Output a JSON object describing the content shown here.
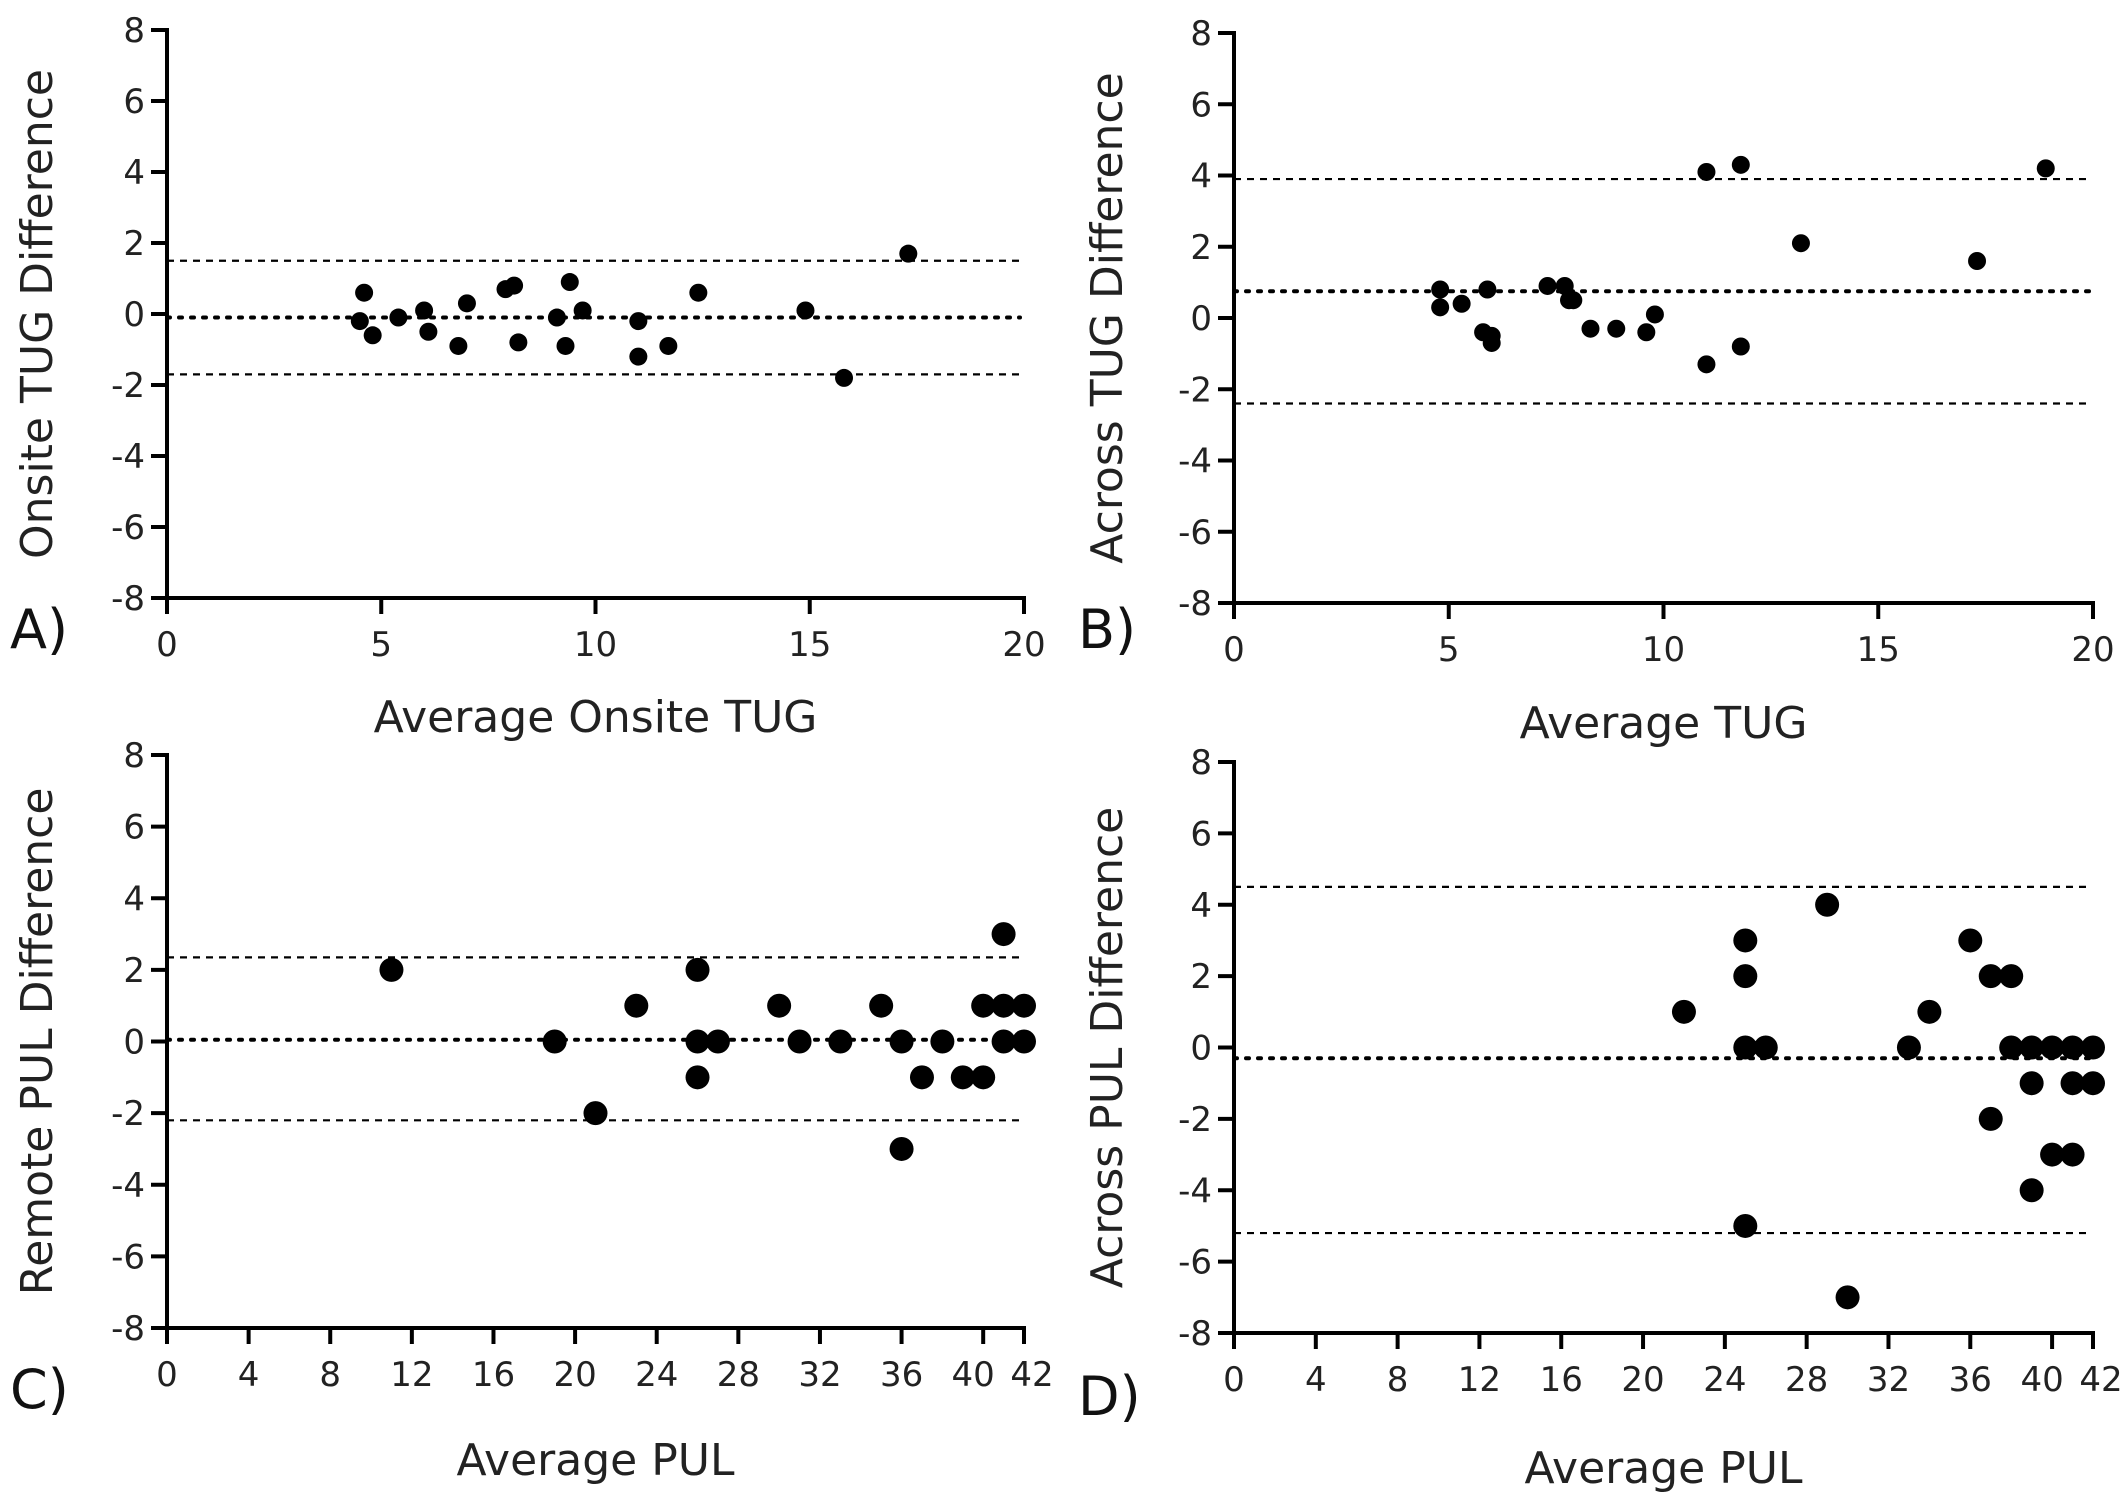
{
  "chart_data": [
    {
      "panel": "A)",
      "type": "scatter",
      "xlabel": "Average Onsite TUG",
      "ylabel": "Onsite TUG Difference",
      "xlim": [
        0,
        20
      ],
      "ylim": [
        -8,
        8
      ],
      "xticks": [
        0,
        5,
        10,
        15,
        20
      ],
      "yticks": [
        -8,
        -6,
        -4,
        -2,
        0,
        2,
        4,
        6,
        8
      ],
      "reference_lines": {
        "upper_loa": 1.5,
        "mean": -0.1,
        "lower_loa": -1.7
      },
      "marker": "small",
      "points": [
        [
          4.6,
          0.6
        ],
        [
          4.5,
          -0.2
        ],
        [
          4.8,
          -0.6
        ],
        [
          5.4,
          -0.1
        ],
        [
          6.0,
          0.1
        ],
        [
          6.1,
          -0.5
        ],
        [
          6.8,
          -0.9
        ],
        [
          7.0,
          0.3
        ],
        [
          7.9,
          0.7
        ],
        [
          8.1,
          0.8
        ],
        [
          8.2,
          -0.8
        ],
        [
          9.1,
          -0.1
        ],
        [
          9.3,
          -0.9
        ],
        [
          9.4,
          0.9
        ],
        [
          9.7,
          0.1
        ],
        [
          11.0,
          -0.2
        ],
        [
          11.0,
          -1.2
        ],
        [
          11.7,
          -0.9
        ],
        [
          12.4,
          0.6
        ],
        [
          14.9,
          0.1
        ],
        [
          15.8,
          -1.8
        ],
        [
          17.3,
          1.7
        ]
      ]
    },
    {
      "panel": "B)",
      "type": "scatter",
      "xlabel": "Average TUG",
      "ylabel": "Across TUG Difference",
      "xlim": [
        0,
        20
      ],
      "ylim": [
        -8,
        8
      ],
      "xticks": [
        0,
        5,
        10,
        15,
        20
      ],
      "yticks": [
        -8,
        -6,
        -4,
        -2,
        0,
        2,
        4,
        6,
        8
      ],
      "reference_lines": {
        "upper_loa": 3.9,
        "mean": 0.75,
        "lower_loa": -2.4
      },
      "marker": "small",
      "points": [
        [
          4.8,
          0.8
        ],
        [
          4.8,
          0.3
        ],
        [
          5.3,
          0.4
        ],
        [
          5.8,
          -0.4
        ],
        [
          5.9,
          0.8
        ],
        [
          6.0,
          -0.5
        ],
        [
          6.0,
          -0.7
        ],
        [
          7.3,
          0.9
        ],
        [
          7.7,
          0.9
        ],
        [
          7.8,
          0.5
        ],
        [
          7.9,
          0.5
        ],
        [
          8.3,
          -0.3
        ],
        [
          8.9,
          -0.3
        ],
        [
          9.6,
          -0.4
        ],
        [
          9.8,
          0.1
        ],
        [
          11.0,
          4.1
        ],
        [
          11.0,
          -1.3
        ],
        [
          11.8,
          4.3
        ],
        [
          11.8,
          -0.8
        ],
        [
          13.2,
          2.1
        ],
        [
          17.3,
          1.6
        ],
        [
          18.9,
          4.2
        ]
      ]
    },
    {
      "panel": "C)",
      "type": "scatter",
      "xlabel": "Average PUL",
      "ylabel": "Remote PUL Difference",
      "xlim": [
        0,
        42
      ],
      "ylim": [
        -8,
        8
      ],
      "xticks": [
        0,
        4,
        8,
        12,
        16,
        20,
        24,
        28,
        32,
        36,
        40,
        42
      ],
      "xtick_labels": [
        "0",
        "4",
        "8",
        "12",
        "16",
        "20",
        "24",
        "28",
        "32",
        "36",
        "40",
        "42"
      ],
      "yticks": [
        -8,
        -6,
        -4,
        -2,
        0,
        2,
        4,
        6,
        8
      ],
      "reference_lines": {
        "upper_loa": 2.35,
        "mean": 0.05,
        "lower_loa": -2.2
      },
      "marker": "large",
      "points": [
        [
          11,
          2
        ],
        [
          19,
          0
        ],
        [
          21,
          -2
        ],
        [
          23,
          1
        ],
        [
          26,
          2
        ],
        [
          26,
          0
        ],
        [
          26,
          -1
        ],
        [
          27,
          0
        ],
        [
          30,
          1
        ],
        [
          31,
          0
        ],
        [
          33,
          0
        ],
        [
          35,
          1
        ],
        [
          36,
          0
        ],
        [
          36,
          -3
        ],
        [
          37,
          -1
        ],
        [
          38,
          0
        ],
        [
          39,
          -1
        ],
        [
          40,
          -1
        ],
        [
          40,
          1
        ],
        [
          41,
          3
        ],
        [
          41,
          1
        ],
        [
          41,
          0
        ],
        [
          42,
          1
        ],
        [
          42,
          0
        ]
      ]
    },
    {
      "panel": "D)",
      "type": "scatter",
      "xlabel": "Average PUL",
      "ylabel": "Across PUL Difference",
      "xlim": [
        0,
        42
      ],
      "ylim": [
        -8,
        8
      ],
      "xticks": [
        0,
        4,
        8,
        12,
        16,
        20,
        24,
        28,
        32,
        36,
        40,
        42
      ],
      "xtick_labels": [
        "0",
        "4",
        "8",
        "12",
        "16",
        "20",
        "24",
        "28",
        "32",
        "36",
        "40",
        "42"
      ],
      "yticks": [
        -8,
        -6,
        -4,
        -2,
        0,
        2,
        4,
        6,
        8
      ],
      "reference_lines": {
        "upper_loa": 4.5,
        "mean": -0.3,
        "lower_loa": -5.2
      },
      "marker": "large",
      "points": [
        [
          22,
          1
        ],
        [
          25,
          3
        ],
        [
          25,
          2
        ],
        [
          25,
          0
        ],
        [
          25,
          -5
        ],
        [
          26,
          0
        ],
        [
          29,
          4
        ],
        [
          30,
          -7
        ],
        [
          33,
          0
        ],
        [
          34,
          1
        ],
        [
          36,
          3
        ],
        [
          37,
          2
        ],
        [
          37,
          -2
        ],
        [
          38,
          2
        ],
        [
          38,
          0
        ],
        [
          39,
          0
        ],
        [
          39,
          -1
        ],
        [
          39,
          -4
        ],
        [
          40,
          0
        ],
        [
          40,
          -3
        ],
        [
          41,
          0
        ],
        [
          41,
          -1
        ],
        [
          41,
          -3
        ],
        [
          42,
          0
        ],
        [
          42,
          -1
        ]
      ]
    }
  ]
}
